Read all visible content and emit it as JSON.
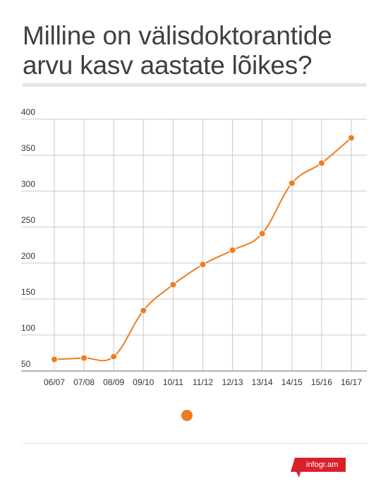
{
  "title": "Milline on välisdoktorantide arvu kasv aastate lõikes?",
  "brand": "infogr.am",
  "colors": {
    "accent": "#f07c1e",
    "grid": "#c9c9c9",
    "axis": "#666666",
    "brand_red": "#d9202b"
  },
  "chart_data": {
    "type": "line",
    "title": "",
    "xlabel": "",
    "ylabel": "",
    "categories": [
      "06/07",
      "07/08",
      "08/09",
      "09/10",
      "10/11",
      "11/12",
      "12/13",
      "13/14",
      "14/15",
      "15/16",
      "16/17"
    ],
    "series": [
      {
        "values": [
          66,
          68,
          70,
          134,
          170,
          198,
          218,
          241,
          311,
          339,
          374
        ]
      }
    ],
    "ylim": [
      50,
      400
    ],
    "yticks": [
      50,
      100,
      150,
      200,
      250,
      300,
      350,
      400
    ],
    "grid": true,
    "legend": "bottom-center"
  }
}
